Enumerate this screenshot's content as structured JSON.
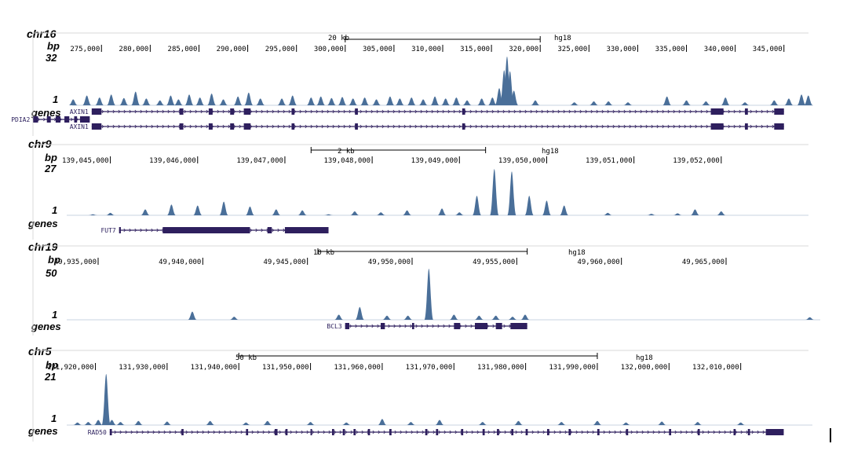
{
  "colors": {
    "signal": "#4a6f99",
    "gene": "#2e1f5e",
    "frame": "#d8d8d8",
    "text": "#000000"
  },
  "tracks": [
    {
      "chrom": "chr16",
      "bp_label": "bp",
      "max_label": "32",
      "min_label": "1",
      "genes_label": "genes",
      "assembly": "hg18",
      "scale_label": "20 kb",
      "scale_kb": 20,
      "range": [
        272000,
        348000
      ],
      "ticks": [
        "275,000",
        "280,000",
        "285,000",
        "290,000",
        "295,000",
        "300,000",
        "305,000",
        "310,000",
        "315,000",
        "320,000",
        "325,000",
        "330,000",
        "335,000",
        "340,000",
        "345,000"
      ],
      "tick_values": [
        275000,
        280000,
        285000,
        290000,
        295000,
        300000,
        305000,
        310000,
        315000,
        320000,
        325000,
        330000,
        335000,
        340000,
        345000
      ],
      "scale_start": 300000,
      "signal": [
        [
          272100,
          0.12
        ],
        [
          273500,
          0.2
        ],
        [
          274800,
          0.16
        ],
        [
          276000,
          0.22
        ],
        [
          277300,
          0.15
        ],
        [
          278500,
          0.28
        ],
        [
          279600,
          0.14
        ],
        [
          281000,
          0.1
        ],
        [
          282100,
          0.2
        ],
        [
          282900,
          0.12
        ],
        [
          284000,
          0.22
        ],
        [
          285100,
          0.16
        ],
        [
          286300,
          0.24
        ],
        [
          287500,
          0.12
        ],
        [
          289000,
          0.18
        ],
        [
          290100,
          0.26
        ],
        [
          291300,
          0.14
        ],
        [
          293500,
          0.14
        ],
        [
          294600,
          0.2
        ],
        [
          296500,
          0.16
        ],
        [
          297500,
          0.18
        ],
        [
          298600,
          0.15
        ],
        [
          299700,
          0.17
        ],
        [
          300800,
          0.14
        ],
        [
          302000,
          0.16
        ],
        [
          303200,
          0.12
        ],
        [
          304600,
          0.18
        ],
        [
          305600,
          0.14
        ],
        [
          306800,
          0.16
        ],
        [
          308000,
          0.12
        ],
        [
          309200,
          0.18
        ],
        [
          310300,
          0.14
        ],
        [
          311400,
          0.16
        ],
        [
          312500,
          0.1
        ],
        [
          314000,
          0.14
        ],
        [
          315100,
          0.16
        ],
        [
          315800,
          0.35
        ],
        [
          316300,
          0.72
        ],
        [
          316600,
          1.0
        ],
        [
          316900,
          0.7
        ],
        [
          317300,
          0.3
        ],
        [
          319500,
          0.1
        ],
        [
          323500,
          0.06
        ],
        [
          325500,
          0.08
        ],
        [
          327000,
          0.08
        ],
        [
          329000,
          0.06
        ],
        [
          333000,
          0.18
        ],
        [
          335000,
          0.1
        ],
        [
          337000,
          0.08
        ],
        [
          339000,
          0.16
        ],
        [
          341000,
          0.06
        ],
        [
          344000,
          0.1
        ],
        [
          345500,
          0.14
        ],
        [
          346800,
          0.22
        ],
        [
          347500,
          0.2
        ]
      ],
      "genes": [
        {
          "name": "AXIN1",
          "from": 274000,
          "to": 345000,
          "exons": [
            [
              274000,
              275000
            ],
            [
              283000,
              283400
            ],
            [
              286000,
              286400
            ],
            [
              288200,
              288600
            ],
            [
              289600,
              290300
            ],
            [
              294500,
              294800
            ],
            [
              301000,
              301300
            ],
            [
              312000,
              312300
            ],
            [
              337500,
              338800
            ],
            [
              341000,
              341300
            ],
            [
              344000,
              345000
            ]
          ],
          "row": 0
        },
        {
          "name": "PDIA2",
          "from": 268000,
          "to": 273800,
          "exons": [
            [
              268000,
              268500
            ],
            [
              269400,
              269800
            ],
            [
              270300,
              270800
            ],
            [
              271200,
              271700
            ],
            [
              272200,
              272500
            ],
            [
              272800,
              273800
            ]
          ],
          "row": 1
        },
        {
          "name": "AXIN1",
          "from": 274000,
          "to": 345000,
          "exons": [
            [
              274000,
              275000
            ],
            [
              283000,
              283400
            ],
            [
              286000,
              286400
            ],
            [
              288200,
              288600
            ],
            [
              289600,
              290300
            ],
            [
              294500,
              294800
            ],
            [
              301000,
              301300
            ],
            [
              312000,
              312300
            ],
            [
              337500,
              338800
            ],
            [
              341000,
              341300
            ],
            [
              344000,
              345000
            ]
          ],
          "row": 2
        }
      ]
    },
    {
      "chrom": "chr9",
      "bp_label": "bp",
      "max_label": "27",
      "min_label": "1",
      "genes_label": "genes",
      "assembly": "hg18",
      "scale_label": "2 kb",
      "scale_kb": 2,
      "range": [
        139044500,
        139053000
      ],
      "ticks": [
        "139,045,000",
        "139,046,000",
        "139,047,000",
        "139,048,000",
        "139,049,000",
        "139,050,000",
        "139,051,000",
        "139,052,000"
      ],
      "tick_values": [
        139045000,
        139046000,
        139047000,
        139048000,
        139049000,
        139050000,
        139051000,
        139052000
      ],
      "scale_start": 139047300,
      "signal": [
        [
          139044500,
          0.0
        ],
        [
          139044800,
          0.02
        ],
        [
          139045000,
          0.05
        ],
        [
          139045400,
          0.12
        ],
        [
          139045700,
          0.22
        ],
        [
          139046000,
          0.2
        ],
        [
          139046300,
          0.28
        ],
        [
          139046600,
          0.18
        ],
        [
          139046900,
          0.12
        ],
        [
          139047200,
          0.1
        ],
        [
          139047500,
          0.02
        ],
        [
          139047700,
          0.0
        ],
        [
          139047800,
          0.08
        ],
        [
          139048100,
          0.06
        ],
        [
          139048300,
          0.0
        ],
        [
          139048400,
          0.1
        ],
        [
          139048800,
          0.14
        ],
        [
          139049000,
          0.06
        ],
        [
          139049100,
          0.0
        ],
        [
          139049200,
          0.4
        ],
        [
          139049400,
          0.95
        ],
        [
          139049600,
          0.9
        ],
        [
          139049800,
          0.4
        ],
        [
          139050000,
          0.3
        ],
        [
          139050200,
          0.2
        ],
        [
          139050400,
          0.0
        ],
        [
          139050700,
          0.05
        ],
        [
          139051000,
          0.0
        ],
        [
          139051200,
          0.03
        ],
        [
          139051500,
          0.04
        ],
        [
          139051700,
          0.12
        ],
        [
          139052000,
          0.08
        ],
        [
          139052200,
          0.0
        ]
      ],
      "genes": [
        {
          "name": "FUT7",
          "from": 139045100,
          "to": 139047500,
          "exons": [
            [
              139045100,
              139045120
            ],
            [
              139045600,
              139046600
            ],
            [
              139046800,
              139046850
            ],
            [
              139047000,
              139047500
            ]
          ],
          "row": 0
        }
      ]
    },
    {
      "chrom": "chr19",
      "bp_label": "bp",
      "max_label": "50",
      "min_label": "1",
      "genes_label": "genes",
      "assembly": "hg18",
      "scale_label": "10 kb",
      "scale_kb": 10,
      "range": [
        49933500,
        49969500
      ],
      "ticks": [
        "49,935,000",
        "49,940,000",
        "49,945,000",
        "49,950,000",
        "49,955,000",
        "49,960,000",
        "49,965,000"
      ],
      "tick_values": [
        49935000,
        49940000,
        49945000,
        49950000,
        49955000,
        49960000,
        49965000
      ],
      "scale_start": 49945500,
      "signal": [
        [
          49939500,
          0.16
        ],
        [
          49941500,
          0.06
        ],
        [
          49946500,
          0.1
        ],
        [
          49947500,
          0.25
        ],
        [
          49948800,
          0.08
        ],
        [
          49949800,
          0.08
        ],
        [
          49950800,
          1.0
        ],
        [
          49952000,
          0.1
        ],
        [
          49953200,
          0.08
        ],
        [
          49954000,
          0.08
        ],
        [
          49954800,
          0.06
        ],
        [
          49955400,
          0.1
        ],
        [
          49969000,
          0.05
        ]
      ],
      "genes": [
        {
          "name": "BCL3",
          "from": 49946800,
          "to": 49955500,
          "exons": [
            [
              49946800,
              49947000
            ],
            [
              49948500,
              49948700
            ],
            [
              49950000,
              49950100
            ],
            [
              49952000,
              49952300
            ],
            [
              49953000,
              49953600
            ],
            [
              49954000,
              49954300
            ],
            [
              49954700,
              49955500
            ]
          ],
          "row": 0
        }
      ]
    },
    {
      "chrom": "chr5",
      "bp_label": "bp",
      "max_label": "21",
      "min_label": "1",
      "genes_label": "genes",
      "assembly": "hg18",
      "scale_label": "50 kb",
      "scale_kb": 50,
      "range": [
        131916000,
        132020000
      ],
      "ticks": [
        "131,920,000",
        "131,930,000",
        "131,940,000",
        "131,950,000",
        "131,960,000",
        "131,970,000",
        "131,980,000",
        "131,990,000",
        "132,000,000",
        "132,010,000"
      ],
      "tick_values": [
        131920000,
        131930000,
        131940000,
        131950000,
        131960000,
        131970000,
        131980000,
        131990000,
        132000000,
        132010000
      ],
      "scale_start": 131940000,
      "signal": [
        [
          131917500,
          0.05
        ],
        [
          131919000,
          0.06
        ],
        [
          131920400,
          0.1
        ],
        [
          131921500,
          1.0
        ],
        [
          131922300,
          0.1
        ],
        [
          131923500,
          0.06
        ],
        [
          131926000,
          0.08
        ],
        [
          131930000,
          0.07
        ],
        [
          131936000,
          0.08
        ],
        [
          131941000,
          0.05
        ],
        [
          131944000,
          0.08
        ],
        [
          131950000,
          0.06
        ],
        [
          131955000,
          0.05
        ],
        [
          131960000,
          0.12
        ],
        [
          131964000,
          0.06
        ],
        [
          131968000,
          0.1
        ],
        [
          131974000,
          0.06
        ],
        [
          131979000,
          0.08
        ],
        [
          131985000,
          0.06
        ],
        [
          131990000,
          0.08
        ],
        [
          131994000,
          0.05
        ],
        [
          131999000,
          0.07
        ],
        [
          132004000,
          0.06
        ],
        [
          132010000,
          0.05
        ]
      ],
      "genes": [
        {
          "name": "RAD50",
          "from": 131922000,
          "to": 132016000,
          "exons": [
            [
              131922000,
              131922300
            ],
            [
              131932000,
              131932300
            ],
            [
              131941000,
              131941300
            ],
            [
              131945000,
              131945400
            ],
            [
              131946500,
              131946800
            ],
            [
              131950000,
              131950200
            ],
            [
              131953000,
              131953300
            ],
            [
              131954500,
              131954800
            ],
            [
              131956000,
              131956300
            ],
            [
              131958000,
              131958300
            ],
            [
              131961000,
              131961300
            ],
            [
              131966000,
              131966300
            ],
            [
              131967500,
              131967800
            ],
            [
              131971000,
              131971300
            ],
            [
              131974000,
              131974300
            ],
            [
              131976000,
              131976300
            ],
            [
              131978000,
              131978300
            ],
            [
              131980000,
              131980300
            ],
            [
              131983000,
              131983300
            ],
            [
              131986000,
              131986300
            ],
            [
              131990000,
              131990300
            ],
            [
              131994000,
              131994300
            ],
            [
              132000000,
              132000300
            ],
            [
              132004000,
              132004300
            ],
            [
              132009000,
              132009300
            ],
            [
              132011000,
              132011300
            ],
            [
              132013500,
              132016000
            ]
          ],
          "row": 0
        }
      ]
    }
  ]
}
